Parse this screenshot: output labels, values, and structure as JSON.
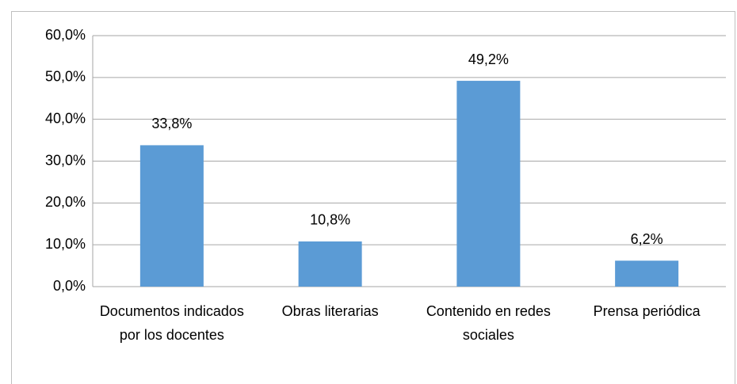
{
  "chart_data": {
    "type": "bar",
    "categories": [
      "Documentos indicados por los docentes",
      "Obras literarias",
      "Contenido en redes sociales",
      "Prensa periódica"
    ],
    "values": [
      33.8,
      10.8,
      49.2,
      6.2
    ],
    "value_labels": [
      "33,8%",
      "10,8%",
      "49,2%",
      "6,2%"
    ],
    "color": "#5b9bd5",
    "ylim": [
      0,
      60
    ],
    "yticks": [
      {
        "value": 0,
        "label": "0,0%"
      },
      {
        "value": 10,
        "label": "10,0%"
      },
      {
        "value": 20,
        "label": "20,0%"
      },
      {
        "value": 30,
        "label": "30,0%"
      },
      {
        "value": 40,
        "label": "40,0%"
      },
      {
        "value": 50,
        "label": "50,0%"
      },
      {
        "value": 60,
        "label": "60,0%"
      }
    ],
    "grid": true
  }
}
